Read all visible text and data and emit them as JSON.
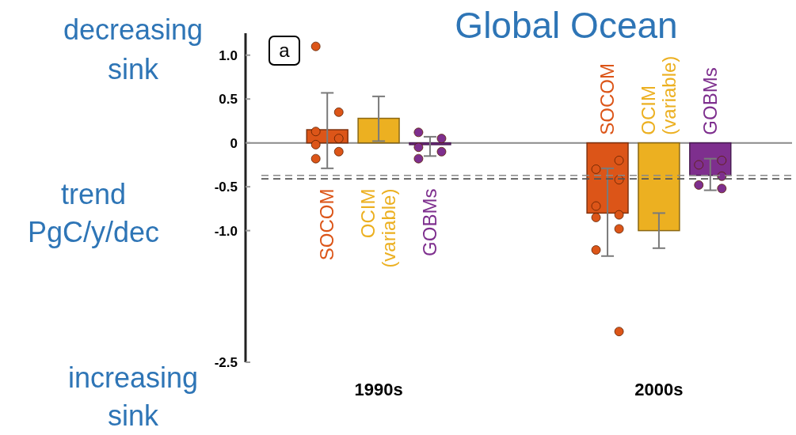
{
  "chart_data": {
    "type": "bar",
    "title": "Global Ocean",
    "ylabel": "trend PgC/y/dec",
    "annotations": [
      "decreasing sink",
      "increasing sink",
      "a"
    ],
    "categories": [
      "1990s",
      "2000s"
    ],
    "ylim": [
      -2.5,
      1.25
    ],
    "yticks": [
      {
        "value": 1,
        "label": "1.0"
      },
      0.5,
      0,
      -0.5,
      {
        "value": -1,
        "label": "-1.0"
      },
      -2.5
    ],
    "series": [
      {
        "name": "SOCOM",
        "color": "#dc5518",
        "values": [
          0.15,
          -0.8
        ],
        "errors": [
          [
            -0.29,
            0.57
          ],
          [
            -1.29,
            -0.29
          ]
        ]
      },
      {
        "name": "OCIM (variable)",
        "color": "#ecb021",
        "values": [
          0.28,
          -1.0
        ],
        "errors": [
          [
            0.02,
            0.53
          ],
          [
            -1.2,
            -0.8
          ]
        ]
      },
      {
        "name": "GOBMs",
        "color": "#7e2f8e",
        "values": [
          -0.02,
          -0.37
        ],
        "errors": [
          [
            -0.15,
            0.07
          ],
          [
            -0.54,
            -0.18
          ]
        ]
      },
      {
        "type": "scatter",
        "color": "#dc5518",
        "x": [
          "1990s",
          "1990s",
          "1990s",
          "1990s",
          "1990s",
          "1990s",
          "1990s",
          "2000s",
          "2000s",
          "2000s",
          "2000s",
          "2000s",
          "2000s",
          "2000s",
          "2000s",
          "2000s"
        ],
        "values": [
          1.1,
          0.35,
          0.13,
          0.05,
          -0.02,
          -0.1,
          -0.18,
          -0.2,
          -0.3,
          -0.42,
          -0.72,
          -0.82,
          -0.85,
          -0.98,
          -1.22,
          -2.15
        ]
      },
      {
        "type": "scatter",
        "color": "#7e2f8e",
        "x": [
          "1990s",
          "1990s",
          "1990s",
          "1990s",
          "1990s",
          "2000s",
          "2000s",
          "2000s",
          "2000s",
          "2000s"
        ],
        "values": [
          0.12,
          0.05,
          -0.05,
          -0.1,
          -0.18,
          -0.2,
          -0.25,
          -0.38,
          -0.48,
          -0.52
        ]
      }
    ],
    "ref_lines": [
      {
        "axis": "y",
        "value": -0.37,
        "color": "#888888",
        "line_style": "dashed"
      },
      {
        "axis": "y",
        "value": -0.41,
        "color": "#555555",
        "line_style": "dashed"
      }
    ],
    "marker": "circle"
  }
}
